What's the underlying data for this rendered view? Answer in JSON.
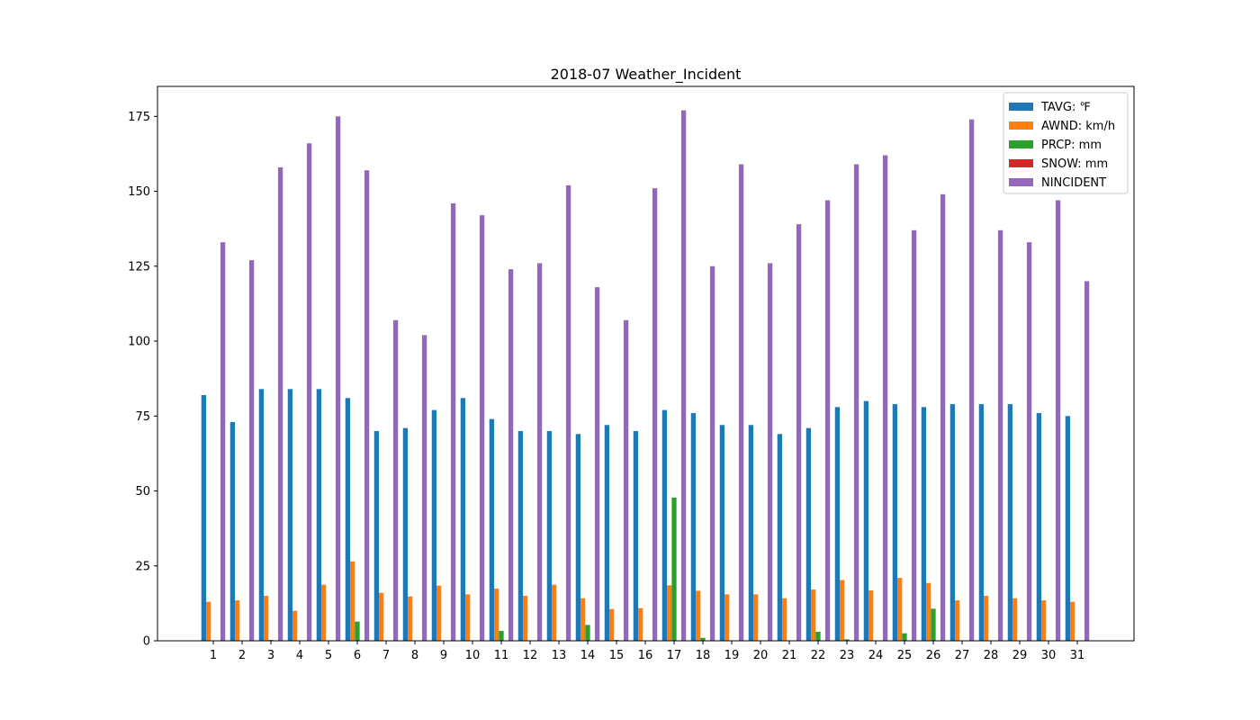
{
  "chart_data": {
    "type": "bar",
    "title": "2018-07 Weather_Incident",
    "xlabel": "",
    "ylabel": "",
    "categories": [
      "1",
      "2",
      "3",
      "4",
      "5",
      "6",
      "7",
      "8",
      "9",
      "10",
      "11",
      "12",
      "13",
      "14",
      "15",
      "16",
      "17",
      "18",
      "19",
      "20",
      "21",
      "22",
      "23",
      "24",
      "25",
      "26",
      "27",
      "28",
      "29",
      "30",
      "31"
    ],
    "ylim": [
      0,
      185
    ],
    "yticks": [
      0,
      25,
      50,
      75,
      100,
      125,
      150,
      175
    ],
    "legend_position": "top-right",
    "grid": false,
    "series": [
      {
        "name": "TAVG: ℉",
        "color": "#1f77b4",
        "values": [
          82,
          73,
          84,
          84,
          84,
          81,
          70,
          71,
          77,
          81,
          74,
          70,
          70,
          69,
          72,
          70,
          77,
          76,
          72,
          72,
          69,
          71,
          78,
          80,
          79,
          78,
          79,
          79,
          79,
          76,
          75
        ]
      },
      {
        "name": "AWND: km/h",
        "color": "#ff7f0e",
        "values": [
          13,
          13.5,
          15,
          10,
          18.7,
          26.5,
          16,
          14.8,
          18.4,
          15.5,
          17.4,
          15,
          18.7,
          14.2,
          10.6,
          10.9,
          18.5,
          16.7,
          15.5,
          15.5,
          14.2,
          17.1,
          20.3,
          16.8,
          21,
          19.3,
          13.5,
          15,
          14.2,
          13.5,
          13
        ]
      },
      {
        "name": "PRCP: mm",
        "color": "#2ca02c",
        "values": [
          0,
          0,
          0.3,
          0,
          0,
          6.4,
          0,
          0,
          0,
          0,
          3.3,
          0,
          0,
          5.3,
          0.3,
          0,
          47.8,
          1,
          0,
          0,
          0,
          3,
          0.5,
          0,
          2.5,
          10.7,
          0,
          0,
          0,
          0,
          0
        ]
      },
      {
        "name": "SNOW: mm",
        "color": "#d62728",
        "values": [
          0,
          0,
          0,
          0,
          0,
          0,
          0,
          0,
          0,
          0,
          0,
          0,
          0,
          0,
          0,
          0,
          0,
          0,
          0,
          0,
          0,
          0,
          0,
          0,
          0,
          0,
          0,
          0,
          0,
          0,
          0
        ]
      },
      {
        "name": "NINCIDENT",
        "color": "#9467bd",
        "values": [
          133,
          127,
          158,
          166,
          175,
          157,
          107,
          102,
          146,
          142,
          124,
          126,
          152,
          118,
          107,
          151,
          177,
          125,
          159,
          126,
          139,
          147,
          159,
          162,
          137,
          149,
          174,
          137,
          133,
          147,
          120
        ]
      }
    ]
  }
}
